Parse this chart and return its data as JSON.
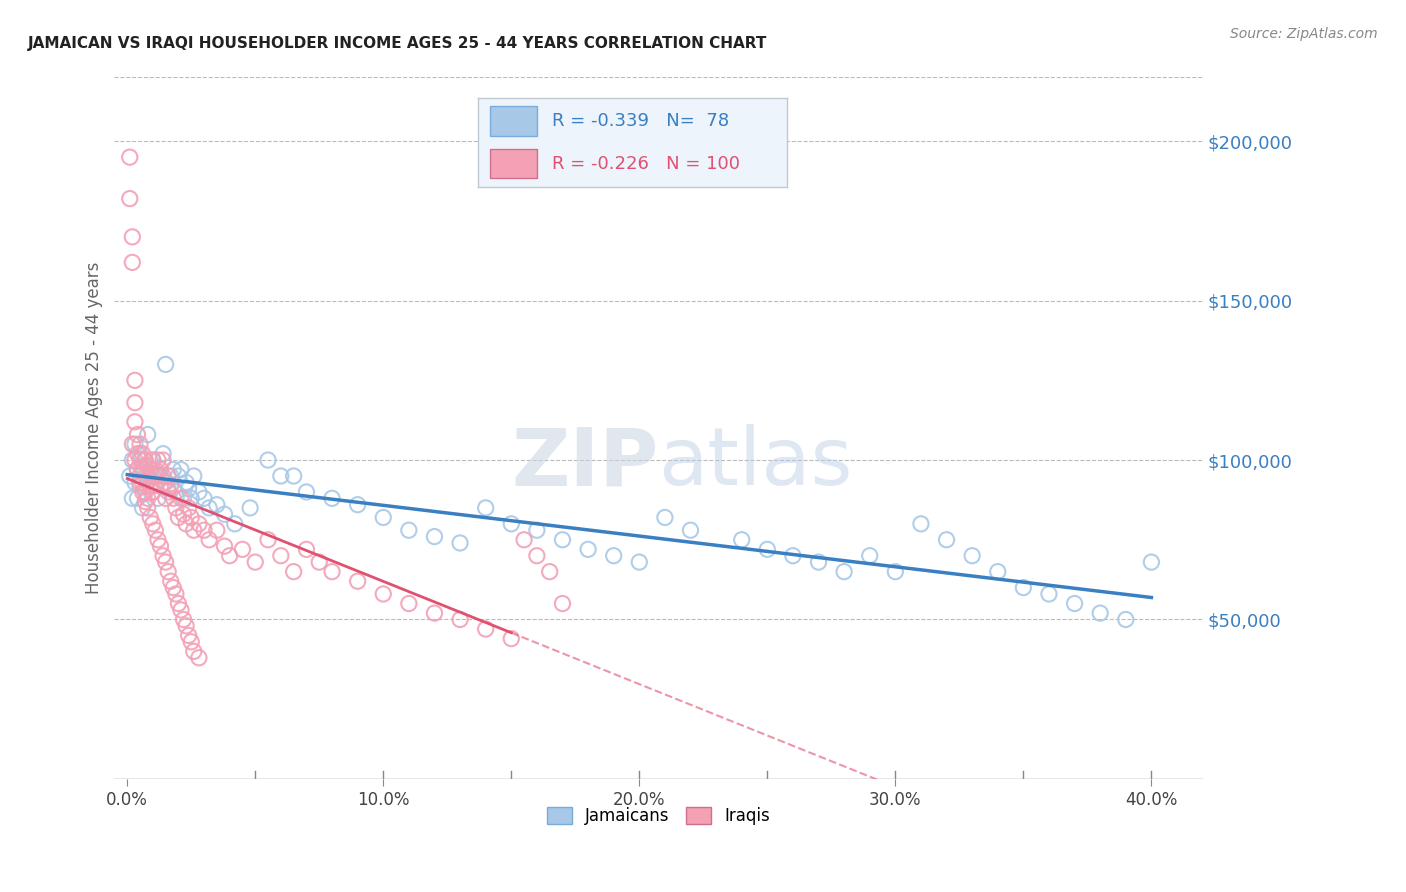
{
  "title": "JAMAICAN VS IRAQI HOUSEHOLDER INCOME AGES 25 - 44 YEARS CORRELATION CHART",
  "source": "Source: ZipAtlas.com",
  "ylabel": "Householder Income Ages 25 - 44 years",
  "xlabel_ticks": [
    "0.0%",
    "",
    "",
    "",
    "",
    "",
    "",
    "",
    "",
    "10.0%",
    "",
    "",
    "",
    "",
    "",
    "",
    "",
    "",
    "",
    "20.0%",
    "",
    "",
    "",
    "",
    "",
    "",
    "",
    "",
    "",
    "30.0%",
    "",
    "",
    "",
    "",
    "",
    "",
    "",
    "",
    "",
    "40.0%"
  ],
  "xlabel_vals": [
    0.0,
    0.025,
    0.05,
    0.075,
    0.1,
    0.125,
    0.15,
    0.175,
    0.2,
    0.225,
    0.25,
    0.275,
    0.3,
    0.325,
    0.35,
    0.375,
    0.4
  ],
  "xlabel_show": [
    "0.0%",
    "10.0%",
    "20.0%",
    "30.0%",
    "40.0%"
  ],
  "xlabel_show_vals": [
    0.0,
    0.1,
    0.2,
    0.3,
    0.4
  ],
  "ytick_labels": [
    "$50,000",
    "$100,000",
    "$150,000",
    "$200,000"
  ],
  "ytick_vals": [
    50000,
    100000,
    150000,
    200000
  ],
  "ylim": [
    0,
    220000
  ],
  "xlim": [
    -0.005,
    0.42
  ],
  "jamaican_color": "#a8c8e8",
  "iraqi_color": "#f4a0b5",
  "jamaican_line_color": "#3a7fc1",
  "iraqi_line_color": "#e05070",
  "jamaican_R": -0.339,
  "jamaican_N": 78,
  "iraqi_R": -0.226,
  "iraqi_N": 100,
  "watermark_zip": "ZIP",
  "watermark_atlas": "atlas",
  "grid_color": "#bbbbbb",
  "jamaican_x": [
    0.001,
    0.002,
    0.002,
    0.003,
    0.003,
    0.004,
    0.004,
    0.005,
    0.005,
    0.006,
    0.006,
    0.007,
    0.008,
    0.008,
    0.009,
    0.009,
    0.01,
    0.01,
    0.011,
    0.012,
    0.013,
    0.014,
    0.015,
    0.016,
    0.017,
    0.018,
    0.019,
    0.02,
    0.021,
    0.022,
    0.023,
    0.024,
    0.025,
    0.026,
    0.028,
    0.03,
    0.032,
    0.035,
    0.038,
    0.042,
    0.048,
    0.055,
    0.06,
    0.065,
    0.07,
    0.08,
    0.09,
    0.1,
    0.11,
    0.12,
    0.13,
    0.14,
    0.15,
    0.16,
    0.17,
    0.18,
    0.19,
    0.2,
    0.21,
    0.22,
    0.24,
    0.25,
    0.26,
    0.27,
    0.28,
    0.29,
    0.3,
    0.31,
    0.32,
    0.33,
    0.34,
    0.35,
    0.36,
    0.37,
    0.38,
    0.39,
    0.4,
    0.005
  ],
  "jamaican_y": [
    95000,
    100000,
    88000,
    93000,
    105000,
    97000,
    88000,
    102000,
    92000,
    98000,
    85000,
    100000,
    95000,
    108000,
    92000,
    96000,
    100000,
    90000,
    95000,
    88000,
    95000,
    102000,
    130000,
    91000,
    95000,
    97000,
    90000,
    95000,
    97000,
    88000,
    93000,
    91000,
    88000,
    95000,
    90000,
    88000,
    85000,
    86000,
    83000,
    80000,
    85000,
    100000,
    95000,
    95000,
    90000,
    88000,
    86000,
    82000,
    78000,
    76000,
    74000,
    85000,
    80000,
    78000,
    75000,
    72000,
    70000,
    68000,
    82000,
    78000,
    75000,
    72000,
    70000,
    68000,
    65000,
    70000,
    65000,
    80000,
    75000,
    70000,
    65000,
    60000,
    58000,
    55000,
    52000,
    50000,
    68000,
    95000
  ],
  "iraqi_x": [
    0.001,
    0.001,
    0.002,
    0.002,
    0.003,
    0.003,
    0.003,
    0.004,
    0.004,
    0.004,
    0.005,
    0.005,
    0.005,
    0.006,
    0.006,
    0.006,
    0.007,
    0.007,
    0.007,
    0.008,
    0.008,
    0.008,
    0.009,
    0.009,
    0.01,
    0.01,
    0.01,
    0.011,
    0.011,
    0.012,
    0.012,
    0.013,
    0.013,
    0.014,
    0.014,
    0.015,
    0.015,
    0.016,
    0.016,
    0.017,
    0.018,
    0.019,
    0.02,
    0.021,
    0.022,
    0.023,
    0.024,
    0.025,
    0.026,
    0.028,
    0.03,
    0.032,
    0.035,
    0.038,
    0.04,
    0.045,
    0.05,
    0.055,
    0.06,
    0.065,
    0.07,
    0.075,
    0.08,
    0.09,
    0.1,
    0.11,
    0.12,
    0.13,
    0.14,
    0.15,
    0.155,
    0.16,
    0.165,
    0.17,
    0.002,
    0.003,
    0.004,
    0.005,
    0.006,
    0.007,
    0.008,
    0.009,
    0.01,
    0.011,
    0.012,
    0.013,
    0.014,
    0.015,
    0.016,
    0.017,
    0.018,
    0.019,
    0.02,
    0.021,
    0.022,
    0.023,
    0.024,
    0.025,
    0.026,
    0.028
  ],
  "iraqi_y": [
    195000,
    182000,
    170000,
    162000,
    125000,
    118000,
    112000,
    108000,
    102000,
    97000,
    105000,
    100000,
    95000,
    102000,
    97000,
    93000,
    100000,
    95000,
    90000,
    98000,
    93000,
    88000,
    97000,
    92000,
    100000,
    95000,
    90000,
    97000,
    92000,
    100000,
    95000,
    97000,
    92000,
    100000,
    95000,
    93000,
    88000,
    95000,
    90000,
    92000,
    88000,
    85000,
    82000,
    88000,
    83000,
    80000,
    85000,
    82000,
    78000,
    80000,
    78000,
    75000,
    78000,
    73000,
    70000,
    72000,
    68000,
    75000,
    70000,
    65000,
    72000,
    68000,
    65000,
    62000,
    58000,
    55000,
    52000,
    50000,
    47000,
    44000,
    75000,
    70000,
    65000,
    55000,
    105000,
    100000,
    97000,
    93000,
    90000,
    87000,
    85000,
    82000,
    80000,
    78000,
    75000,
    73000,
    70000,
    68000,
    65000,
    62000,
    60000,
    58000,
    55000,
    53000,
    50000,
    48000,
    45000,
    43000,
    40000,
    38000
  ]
}
